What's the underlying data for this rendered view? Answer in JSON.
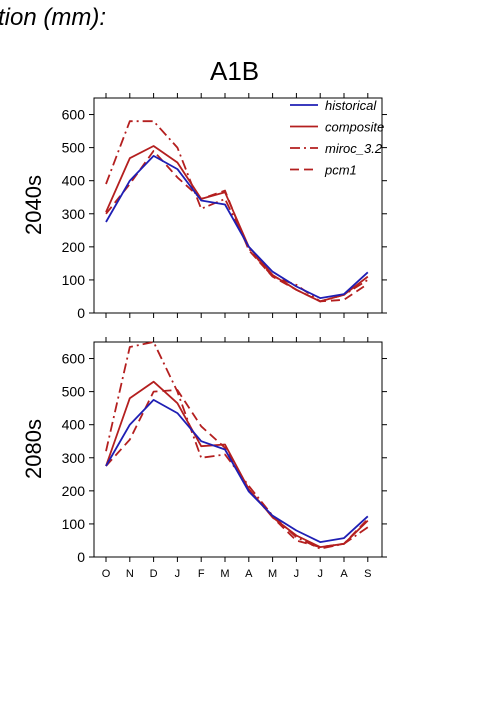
{
  "header": {
    "title": "tion (mm):",
    "scenario": "A1B"
  },
  "chart_data": [
    {
      "type": "line",
      "row_label": "2040s",
      "x": [
        "O",
        "N",
        "D",
        "J",
        "F",
        "M",
        "A",
        "M",
        "J",
        "J",
        "A",
        "S"
      ],
      "ylim": [
        0,
        650
      ],
      "yticks": [
        0,
        100,
        200,
        300,
        400,
        500,
        600
      ],
      "grid": false,
      "legend_position": "top-right",
      "series": [
        {
          "name": "historical",
          "color": "#1f1fb4",
          "dash": "solid",
          "values": [
            275,
            400,
            475,
            435,
            340,
            328,
            200,
            125,
            80,
            45,
            57,
            123
          ]
        },
        {
          "name": "composite",
          "color": "#b41f1f",
          "dash": "solid",
          "values": [
            305,
            468,
            505,
            455,
            345,
            365,
            200,
            115,
            70,
            35,
            55,
            110
          ]
        },
        {
          "name": "miroc_3.2",
          "color": "#b41f1f",
          "dash": "dashdot",
          "values": [
            390,
            580,
            580,
            500,
            315,
            345,
            195,
            110,
            85,
            35,
            55,
            100
          ]
        },
        {
          "name": "pcm1",
          "color": "#b41f1f",
          "dash": "dash",
          "values": [
            300,
            390,
            490,
            410,
            345,
            370,
            190,
            110,
            70,
            35,
            40,
            88
          ]
        }
      ]
    },
    {
      "type": "line",
      "row_label": "2080s",
      "x": [
        "O",
        "N",
        "D",
        "J",
        "F",
        "M",
        "A",
        "M",
        "J",
        "J",
        "A",
        "S"
      ],
      "xlabels": [
        "O",
        "N",
        "D",
        "J",
        "F",
        "M",
        "A",
        "M",
        "J",
        "J",
        "A",
        "S"
      ],
      "ylim": [
        0,
        650
      ],
      "yticks": [
        0,
        100,
        200,
        300,
        400,
        500,
        600
      ],
      "grid": false,
      "series": [
        {
          "name": "historical",
          "color": "#1f1fb4",
          "dash": "solid",
          "values": [
            275,
            400,
            475,
            435,
            350,
            325,
            198,
            125,
            80,
            45,
            57,
            123
          ]
        },
        {
          "name": "composite",
          "color": "#b41f1f",
          "dash": "solid",
          "values": [
            275,
            480,
            530,
            465,
            335,
            340,
            205,
            120,
            65,
            30,
            40,
            110
          ]
        },
        {
          "name": "miroc_3.2",
          "color": "#b41f1f",
          "dash": "dashdot",
          "values": [
            320,
            635,
            650,
            500,
            300,
            310,
            215,
            125,
            60,
            25,
            40,
            90
          ]
        },
        {
          "name": "pcm1",
          "color": "#b41f1f",
          "dash": "dash",
          "values": [
            275,
            355,
            500,
            505,
            395,
            330,
            205,
            120,
            50,
            30,
            40,
            115
          ]
        }
      ]
    }
  ]
}
